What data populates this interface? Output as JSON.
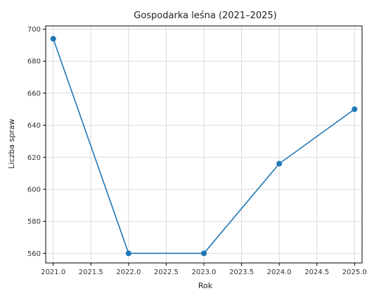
{
  "chart_data": {
    "type": "line",
    "title": "Gospodarka leśna (2021–2025)",
    "xlabel": "Rok",
    "ylabel": "Liczba spraw",
    "x": [
      2021,
      2022,
      2023,
      2024,
      2025
    ],
    "series": [
      {
        "values": [
          694,
          560,
          560,
          616,
          650
        ]
      }
    ],
    "xlim": [
      2020.9,
      2025.1
    ],
    "ylim": [
      554,
      702
    ],
    "x_ticks": [
      "2021.0",
      "2021.5",
      "2022.0",
      "2022.5",
      "2023.0",
      "2023.5",
      "2024.0",
      "2024.5",
      "2025.0"
    ],
    "y_ticks": [
      "560",
      "580",
      "600",
      "620",
      "640",
      "660",
      "680",
      "700"
    ],
    "grid": true,
    "colors": {
      "line": "#1f77b4",
      "grid": "#d9d9d9",
      "axis": "#000000"
    }
  }
}
